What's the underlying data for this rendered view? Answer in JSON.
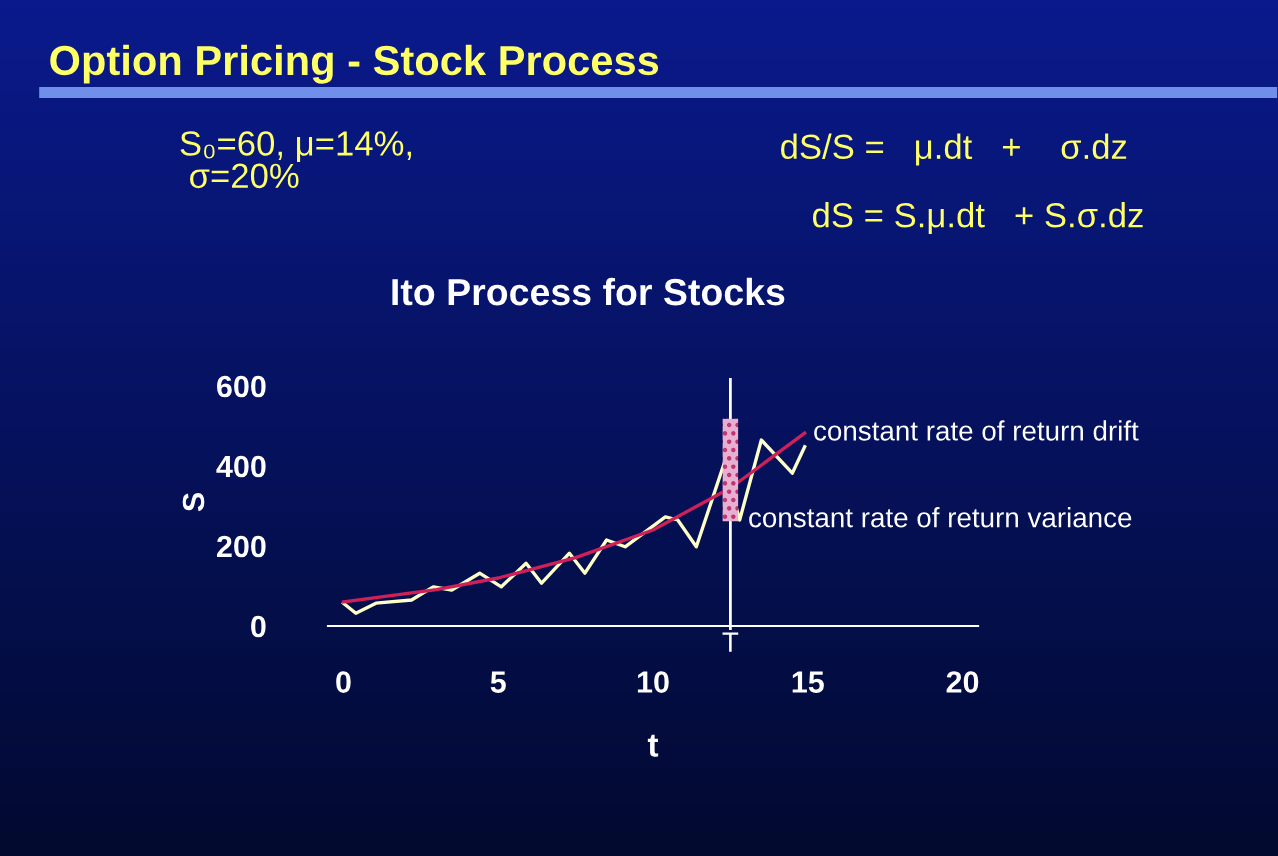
{
  "chart_data": {
    "type": "line",
    "title": "Option Pricing - Stock Process",
    "subtitle": "Ito Process for Stocks",
    "xlabel": "t",
    "ylabel": "S",
    "xlim": [
      -0.5,
      20.5
    ],
    "ylim": [
      0,
      620
    ],
    "xticks": [
      0,
      5,
      10,
      15,
      20
    ],
    "yticks": [
      0,
      200,
      400,
      600
    ],
    "series": [
      {
        "color": "#ffffc8",
        "x": [
          0,
          0.4,
          1.05,
          2.2,
          2.9,
          3.5,
          4.4,
          5.1,
          5.9,
          6.4,
          7.3,
          7.8,
          8.5,
          9.1,
          10.4,
          10.8,
          11.4,
          12.3,
          12.8,
          13.5,
          14.5,
          14.9
        ],
        "values": [
          57,
          32,
          57,
          65,
          98,
          90,
          132,
          98,
          157,
          107,
          182,
          132,
          215,
          198,
          273,
          265,
          198,
          407,
          265,
          465,
          382,
          448
        ]
      },
      {
        "color": "#d0205a",
        "x": [
          0,
          3,
          5,
          7.5,
          10,
          12.5,
          14.9
        ],
        "values": [
          60,
          91,
          120,
          171,
          240,
          345,
          482
        ]
      },
      {
        "type": "bar",
        "color": "#e8b0d0",
        "x": [
          12.5
        ],
        "base": [
          262
        ],
        "values": [
          256
        ]
      }
    ],
    "ref_lines": [
      {
        "axis": "x",
        "value": 12.5,
        "label": "T",
        "color": "#ffffff"
      }
    ],
    "annotations": [
      "S₀=60, μ=14%,\n σ=20%",
      "dS/S =   μ.dt   +    σ.dz",
      "dS = S.μ.dt   + S.σ.dz",
      {
        "text": "constant rate of return drift",
        "x": 14.9,
        "y": 482
      },
      {
        "text": "constant rate of return variance",
        "x": 12.8,
        "y": 265
      }
    ]
  }
}
